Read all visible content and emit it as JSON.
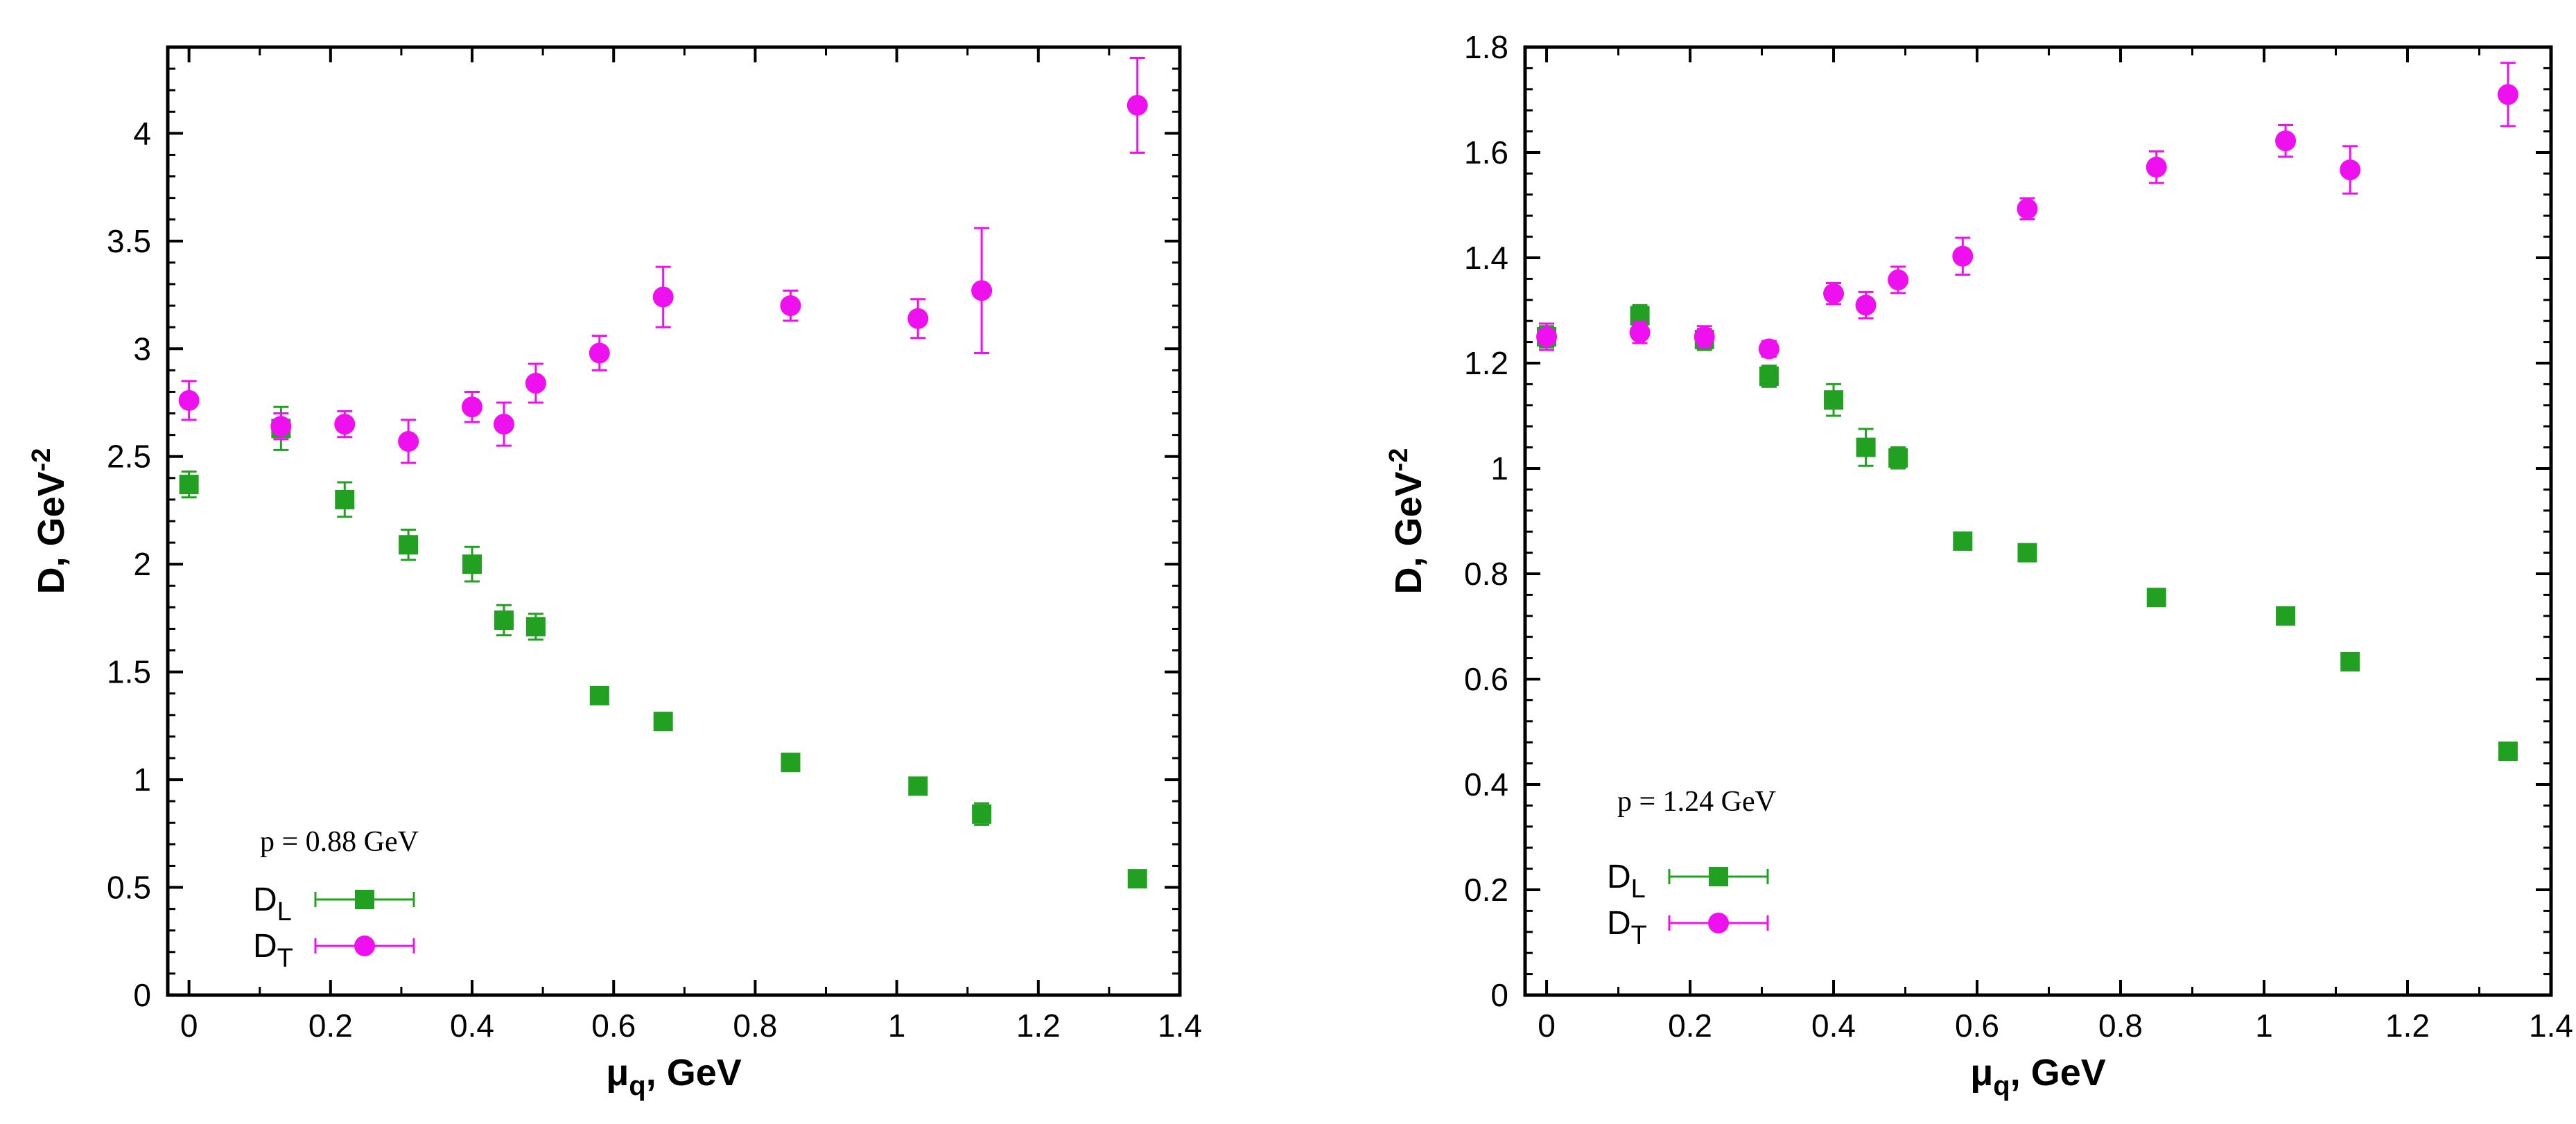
{
  "chart_data": [
    {
      "type": "scatter",
      "title": "",
      "annotation": "p = 0.88 GeV",
      "xlabel_symbol": "μ",
      "xlabel_sub": "q",
      "xlabel_rest": ", GeV",
      "ylabel_base": "D, GeV",
      "ylabel_sup": "-2",
      "xlim": [
        -0.03,
        1.4
      ],
      "ylim": [
        0,
        4.4
      ],
      "xticks": [
        0,
        0.2,
        0.4,
        0.6,
        0.8,
        1,
        1.2,
        1.4
      ],
      "xtick_labels": [
        "0",
        "0.2",
        "0.4",
        "0.6",
        "0.8",
        "1",
        "1.2",
        "1.4"
      ],
      "yticks": [
        0,
        0.5,
        1,
        1.5,
        2,
        2.5,
        3,
        3.5,
        4
      ],
      "ytick_labels": [
        "0",
        "0.5",
        "1",
        "1.5",
        "2",
        "2.5",
        "3",
        "3.5",
        "4"
      ],
      "legend_position": "bottom-left",
      "series": [
        {
          "name": "D_L",
          "label_main": "D",
          "label_sub": "L",
          "marker": "square",
          "color": "#22a022",
          "x": [
            0,
            0.13,
            0.22,
            0.31,
            0.4,
            0.445,
            0.49,
            0.58,
            0.67,
            0.85,
            1.03,
            1.12,
            1.34
          ],
          "y": [
            2.37,
            2.63,
            2.3,
            2.09,
            2.0,
            1.74,
            1.71,
            1.39,
            1.27,
            1.08,
            0.97,
            0.84,
            0.54
          ],
          "err": [
            0.06,
            0.1,
            0.08,
            0.07,
            0.08,
            0.07,
            0.06,
            0.03,
            0.04,
            0.03,
            0.03,
            0.05,
            0.02
          ]
        },
        {
          "name": "D_T",
          "label_main": "D",
          "label_sub": "T",
          "marker": "circle",
          "color": "#ee10ee",
          "x": [
            0,
            0.13,
            0.22,
            0.31,
            0.4,
            0.445,
            0.49,
            0.58,
            0.67,
            0.85,
            1.03,
            1.12,
            1.34
          ],
          "y": [
            2.76,
            2.64,
            2.65,
            2.57,
            2.73,
            2.65,
            2.84,
            2.98,
            3.24,
            3.2,
            3.14,
            3.27,
            4.13
          ],
          "err": [
            0.09,
            0.06,
            0.06,
            0.1,
            0.07,
            0.1,
            0.09,
            0.08,
            0.14,
            0.07,
            0.09,
            0.29,
            0.22
          ]
        }
      ]
    },
    {
      "type": "scatter",
      "title": "",
      "annotation": "p = 1.24 GeV",
      "xlabel_symbol": "μ",
      "xlabel_sub": "q",
      "xlabel_rest": ", GeV",
      "ylabel_base": "D, GeV",
      "ylabel_sup": "-2",
      "xlim": [
        -0.03,
        1.4
      ],
      "ylim": [
        0,
        1.8
      ],
      "xticks": [
        0,
        0.2,
        0.4,
        0.6,
        0.8,
        1,
        1.2,
        1.4
      ],
      "xtick_labels": [
        "0",
        "0.2",
        "0.4",
        "0.6",
        "0.8",
        "1",
        "1.2",
        "1.4"
      ],
      "yticks": [
        0,
        0.2,
        0.4,
        0.6,
        0.8,
        1,
        1.2,
        1.4,
        1.6,
        1.8
      ],
      "ytick_labels": [
        "0",
        "0.2",
        "0.4",
        "0.6",
        "0.8",
        "1",
        "1.2",
        "1.4",
        "1.6",
        "1.8"
      ],
      "legend_position": "bottom-left",
      "series": [
        {
          "name": "D_L",
          "label_main": "D",
          "label_sub": "L",
          "marker": "square",
          "color": "#22a022",
          "x": [
            0,
            0.13,
            0.22,
            0.31,
            0.4,
            0.445,
            0.49,
            0.58,
            0.67,
            0.85,
            1.03,
            1.12,
            1.34
          ],
          "y": [
            1.25,
            1.29,
            1.245,
            1.175,
            1.13,
            1.04,
            1.02,
            0.862,
            0.84,
            0.755,
            0.72,
            0.633,
            0.463
          ],
          "err": [
            0.02,
            0.02,
            0.02,
            0.02,
            0.03,
            0.035,
            0.02,
            0.01,
            0.01,
            0.01,
            0.01,
            0.01,
            0.01
          ]
        },
        {
          "name": "D_T",
          "label_main": "D",
          "label_sub": "T",
          "marker": "circle",
          "color": "#ee10ee",
          "x": [
            0,
            0.13,
            0.22,
            0.31,
            0.4,
            0.445,
            0.49,
            0.58,
            0.67,
            0.85,
            1.03,
            1.12,
            1.34
          ],
          "y": [
            1.25,
            1.258,
            1.25,
            1.227,
            1.332,
            1.31,
            1.358,
            1.403,
            1.493,
            1.572,
            1.622,
            1.567,
            1.71
          ],
          "err": [
            0.025,
            0.02,
            0.02,
            0.015,
            0.02,
            0.025,
            0.025,
            0.035,
            0.02,
            0.03,
            0.03,
            0.045,
            0.06
          ]
        }
      ]
    }
  ]
}
